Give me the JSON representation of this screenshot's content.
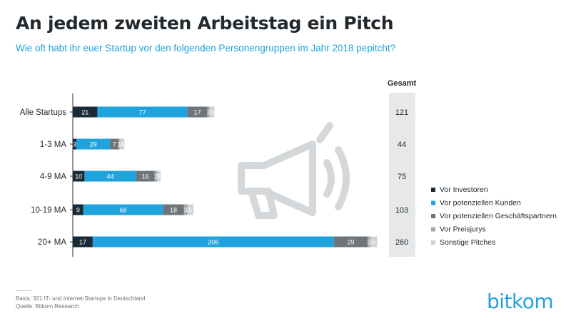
{
  "title": "An jedem zweiten Arbeitstag ein Pitch",
  "subtitle": "Wie oft habt ihr euer Startup vor den folgenden Personengruppen im Jahr 2018 pepitcht?",
  "footnote": {
    "basis": "Basis: 321 IT- und Internet-Startups in Deutschland",
    "source": "Quelle: Bitkom Research"
  },
  "logo": {
    "bit": "bit",
    "kom": "kom"
  },
  "icon": "megaphone-icon",
  "chart_data": {
    "type": "bar",
    "orientation": "horizontal",
    "stacked": true,
    "categories": [
      "Alle Startups",
      "1-3 MA",
      "4-9 MA",
      "10-19 MA",
      "20+ MA"
    ],
    "series": [
      {
        "name": "Vor Investoren",
        "color": "#1a2b38",
        "values": [
          21,
          3,
          10,
          9,
          17
        ]
      },
      {
        "name": "Vor potenziellen Kunden",
        "color": "#1fa3dc",
        "values": [
          77,
          29,
          44,
          68,
          206
        ]
      },
      {
        "name": "Vor potenziellen Geschäftspartnern",
        "color": "#6f7478",
        "values": [
          17,
          7,
          16,
          18,
          29
        ]
      },
      {
        "name": "Vor Preisjurys",
        "color": "#a3a7aa",
        "values": [
          2,
          1,
          2,
          3,
          2
        ]
      },
      {
        "name": "Sonstige Pitches",
        "color": "#cfd2d4",
        "values": [
          4,
          4,
          3,
          5,
          6
        ]
      }
    ],
    "totals_header": "Gesamt",
    "totals": [
      121,
      44,
      75,
      103,
      260
    ],
    "legend": "right"
  }
}
